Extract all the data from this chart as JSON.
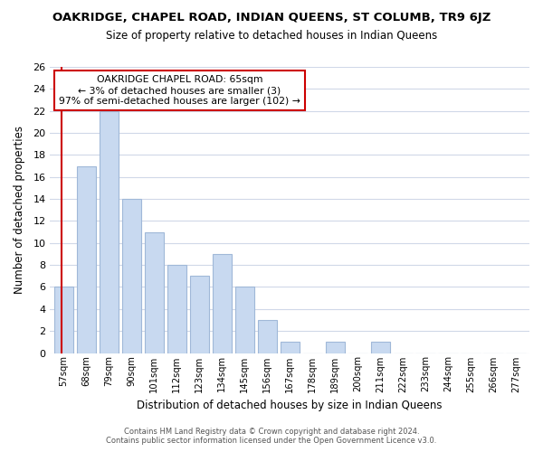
{
  "title": "OAKRIDGE, CHAPEL ROAD, INDIAN QUEENS, ST COLUMB, TR9 6JZ",
  "subtitle": "Size of property relative to detached houses in Indian Queens",
  "xlabel": "Distribution of detached houses by size in Indian Queens",
  "ylabel": "Number of detached properties",
  "bar_color": "#c8d9f0",
  "bar_edge_color": "#a0b8d8",
  "bin_labels": [
    "57sqm",
    "68sqm",
    "79sqm",
    "90sqm",
    "101sqm",
    "112sqm",
    "123sqm",
    "134sqm",
    "145sqm",
    "156sqm",
    "167sqm",
    "178sqm",
    "189sqm",
    "200sqm",
    "211sqm",
    "222sqm",
    "233sqm",
    "244sqm",
    "255sqm",
    "266sqm",
    "277sqm"
  ],
  "bar_heights": [
    6,
    17,
    22,
    14,
    11,
    8,
    7,
    9,
    6,
    3,
    1,
    0,
    1,
    0,
    1,
    0,
    0,
    0,
    0,
    0,
    0
  ],
  "ylim": [
    0,
    26
  ],
  "yticks": [
    0,
    2,
    4,
    6,
    8,
    10,
    12,
    14,
    16,
    18,
    20,
    22,
    24,
    26
  ],
  "annotation_title": "OAKRIDGE CHAPEL ROAD: 65sqm",
  "annotation_line2": "← 3% of detached houses are smaller (3)",
  "annotation_line3": "97% of semi-detached houses are larger (102) →",
  "box_color": "#ffffff",
  "box_edge_color": "#cc0000",
  "footer_line1": "Contains HM Land Registry data © Crown copyright and database right 2024.",
  "footer_line2": "Contains public sector information licensed under the Open Government Licence v3.0.",
  "background_color": "#ffffff",
  "grid_color": "#d0d8e8",
  "redline_x": 0.5
}
